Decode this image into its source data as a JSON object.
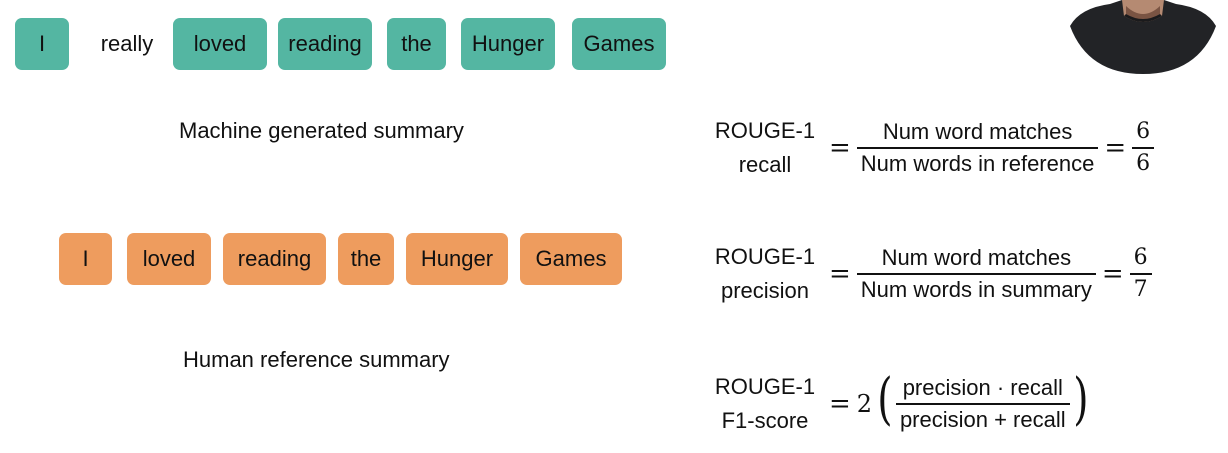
{
  "machine": {
    "tokens": [
      "I",
      "really",
      "loved",
      "reading",
      "the",
      "Hunger",
      "Games"
    ],
    "token_styles": [
      "teal",
      "plain",
      "teal",
      "teal",
      "teal",
      "teal",
      "teal"
    ],
    "caption": "Machine generated summary"
  },
  "human": {
    "tokens": [
      "I",
      "loved",
      "reading",
      "the",
      "Hunger",
      "Games"
    ],
    "caption": "Human reference summary"
  },
  "formulas": {
    "recall": {
      "name_line1": "ROUGE-1",
      "name_line2": "recall",
      "eq": "=",
      "numerator": "Num word matches",
      "denominator": "Num words in reference",
      "eq2": "=",
      "result_num": "6",
      "result_den": "6"
    },
    "precision": {
      "name_line1": "ROUGE-1",
      "name_line2": "precision",
      "eq": "=",
      "numerator": "Num word matches",
      "denominator": "Num words in summary",
      "eq2": "=",
      "result_num": "6",
      "result_den": "7"
    },
    "f1": {
      "name_line1": "ROUGE-1",
      "name_line2": "F1-score",
      "eq": "=",
      "coefficient": "2",
      "open_paren": "(",
      "numerator": "precision · recall",
      "denominator": "precision + recall",
      "close_paren": ")"
    }
  },
  "colors": {
    "machine_token": "#54b6a2",
    "human_token": "#ee9c5e"
  }
}
